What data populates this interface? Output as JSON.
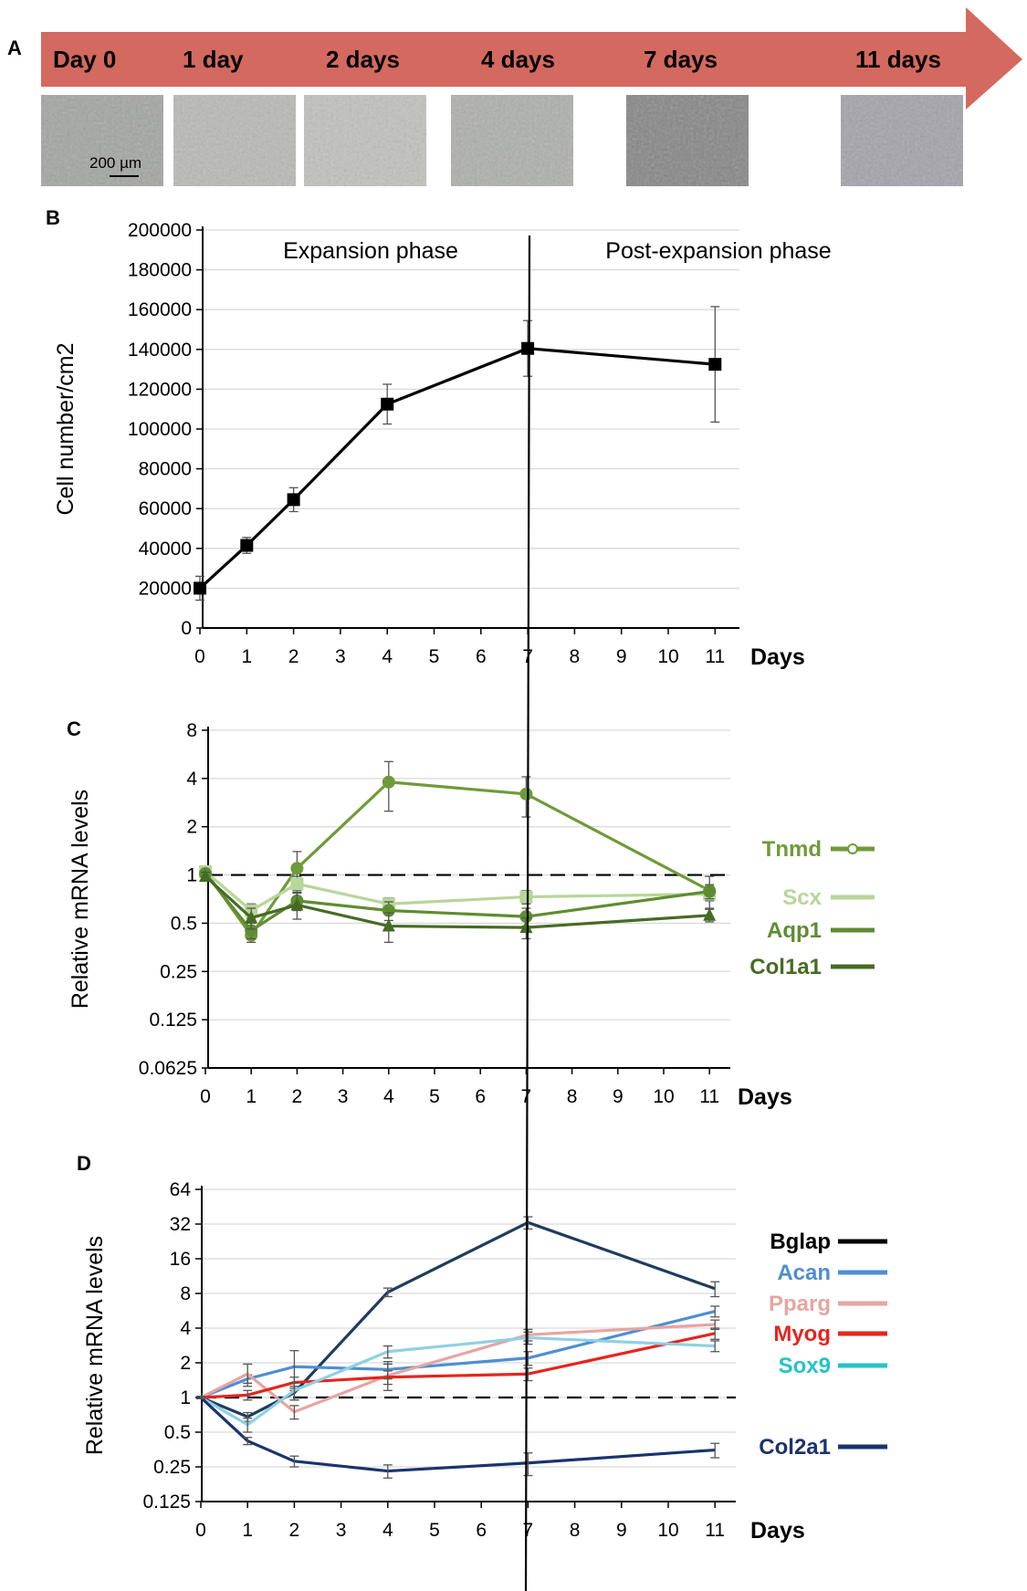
{
  "panel_a": {
    "label": "A",
    "arrow_color": "#d4695f",
    "timepoints": [
      "Day 0",
      "1 day",
      "2 days",
      "4 days",
      "7 days",
      "11 days"
    ],
    "micrograph_tones": [
      "#a3a5a2",
      "#b9bab6",
      "#c1c2bd",
      "#aeb0ab",
      "#858685",
      "#a4a2ab"
    ],
    "scale_bar": "200 µm"
  },
  "chart_data": [
    {
      "panel": "B",
      "type": "line",
      "x_tick_labels": [
        "0",
        "1",
        "2",
        "3",
        "4",
        "5",
        "6",
        "7",
        "8",
        "9",
        "10",
        "11"
      ],
      "x_axis_title": "Days",
      "ylabel": "Cell number/cm2",
      "y_ticks": [
        0,
        20000,
        40000,
        60000,
        80000,
        100000,
        120000,
        140000,
        160000,
        180000,
        200000
      ],
      "ylim": [
        0,
        200000
      ],
      "annotations": [
        "Expansion phase",
        "Post-expansion phase"
      ],
      "grid": true,
      "series": [
        {
          "color": "#000000",
          "marker": "square",
          "x": [
            0,
            1,
            2,
            4,
            7,
            11
          ],
          "values": [
            20000,
            41500,
            64500,
            112500,
            140500,
            132500
          ],
          "errors": [
            6000,
            4000,
            6000,
            10000,
            14000,
            29000
          ]
        }
      ]
    },
    {
      "panel": "C",
      "type": "line",
      "scale": "log2",
      "x_tick_labels": [
        "0",
        "1",
        "2",
        "3",
        "4",
        "5",
        "6",
        "7",
        "8",
        "9",
        "10",
        "11"
      ],
      "x_axis_title": "Days",
      "ylabel": "Relative mRNA levels",
      "y_tick_labels": [
        "0.0625",
        "0.125",
        "0.25",
        "0.5",
        "1",
        "2",
        "4",
        "8"
      ],
      "y_tick_values": [
        0.0625,
        0.125,
        0.25,
        0.5,
        1,
        2,
        4,
        8
      ],
      "ylim": [
        0.0625,
        8
      ],
      "reference_line": 1,
      "grid": true,
      "series": [
        {
          "name": "Tnmd",
          "color": "#6f9a3a",
          "marker": "circle",
          "x": [
            0,
            1,
            2,
            4,
            7,
            11
          ],
          "values": [
            1.05,
            0.42,
            1.1,
            3.8,
            3.2,
            0.8
          ],
          "errors": [
            0.07,
            0.04,
            0.3,
            1.3,
            0.9,
            0.18
          ]
        },
        {
          "name": "Scx",
          "color": "#b7d69a",
          "marker": "square",
          "x": [
            0,
            1,
            2,
            4,
            7,
            11
          ],
          "values": [
            1.05,
            0.6,
            0.88,
            0.66,
            0.73,
            0.76
          ],
          "errors": [
            0.06,
            0.06,
            0.1,
            0.06,
            0.07,
            0.07
          ]
        },
        {
          "name": "Aqp1",
          "color": "#5f8c32",
          "marker": "circle",
          "x": [
            0,
            1,
            2,
            4,
            7,
            11
          ],
          "values": [
            1.02,
            0.45,
            0.69,
            0.6,
            0.55,
            0.79
          ],
          "errors": [
            0.05,
            0.05,
            0.09,
            0.08,
            0.07,
            0.08
          ]
        },
        {
          "name": "Col1a1",
          "color": "#466b24",
          "marker": "triangle",
          "x": [
            0,
            1,
            2,
            4,
            7,
            11
          ],
          "values": [
            0.98,
            0.54,
            0.65,
            0.48,
            0.47,
            0.56
          ],
          "errors": [
            0.06,
            0.08,
            0.12,
            0.1,
            0.07,
            0.05
          ]
        }
      ]
    },
    {
      "panel": "D",
      "type": "line",
      "scale": "log2",
      "x_tick_labels": [
        "0",
        "1",
        "2",
        "3",
        "4",
        "5",
        "6",
        "7",
        "8",
        "9",
        "10",
        "11"
      ],
      "x_axis_title": "Days",
      "ylabel": "Relative mRNA levels",
      "y_tick_labels": [
        "0.125",
        "0.25",
        "0.5",
        "1",
        "2",
        "4",
        "8",
        "16",
        "32",
        "64"
      ],
      "y_tick_values": [
        0.125,
        0.25,
        0.5,
        1,
        2,
        4,
        8,
        16,
        32,
        64
      ],
      "ylim": [
        0.125,
        64
      ],
      "reference_line": 1,
      "grid": true,
      "series": [
        {
          "name": "Bglap",
          "color": "#1f3c5e",
          "x": [
            0,
            1,
            2,
            4,
            7,
            11
          ],
          "values": [
            1,
            0.68,
            1.1,
            8.2,
            33,
            8.8
          ],
          "errors": [
            0.02,
            0.06,
            0.15,
            0.7,
            4,
            1.3
          ]
        },
        {
          "name": "Acan",
          "color": "#4f8ed2",
          "x": [
            0,
            1,
            2,
            4,
            7,
            11
          ],
          "values": [
            1,
            1.45,
            1.85,
            1.75,
            2.2,
            5.6
          ],
          "errors": [
            0.02,
            0.12,
            0.7,
            0.3,
            0.3,
            0.6
          ]
        },
        {
          "name": "Pparg",
          "color": "#e6a5a2",
          "x": [
            0,
            1,
            2,
            4,
            7,
            11
          ],
          "values": [
            1,
            1.6,
            0.75,
            1.55,
            3.5,
            4.3
          ],
          "errors": [
            0.02,
            0.35,
            0.1,
            0.4,
            0.4,
            0.4
          ]
        },
        {
          "name": "Myog",
          "color": "#e3261d",
          "x": [
            0,
            1,
            2,
            4,
            7,
            11
          ],
          "values": [
            1,
            1.05,
            1.35,
            1.5,
            1.6,
            3.6
          ],
          "errors": [
            0.02,
            0.1,
            0.15,
            0.2,
            0.2,
            0.4
          ]
        },
        {
          "name": "Sox9",
          "color": "#8fd0e4",
          "x": [
            0,
            1,
            2,
            4,
            7,
            11
          ],
          "values": [
            1,
            0.58,
            1.15,
            2.5,
            3.3,
            2.8
          ],
          "errors": [
            0.02,
            0.08,
            0.2,
            0.3,
            0.4,
            0.3
          ]
        },
        {
          "name": "Col2a1",
          "color": "#1a336e",
          "x": [
            0,
            1,
            2,
            4,
            7,
            11
          ],
          "values": [
            1,
            0.42,
            0.28,
            0.23,
            0.27,
            0.35
          ],
          "errors": [
            0.02,
            0.03,
            0.03,
            0.03,
            0.06,
            0.05
          ]
        }
      ]
    }
  ]
}
